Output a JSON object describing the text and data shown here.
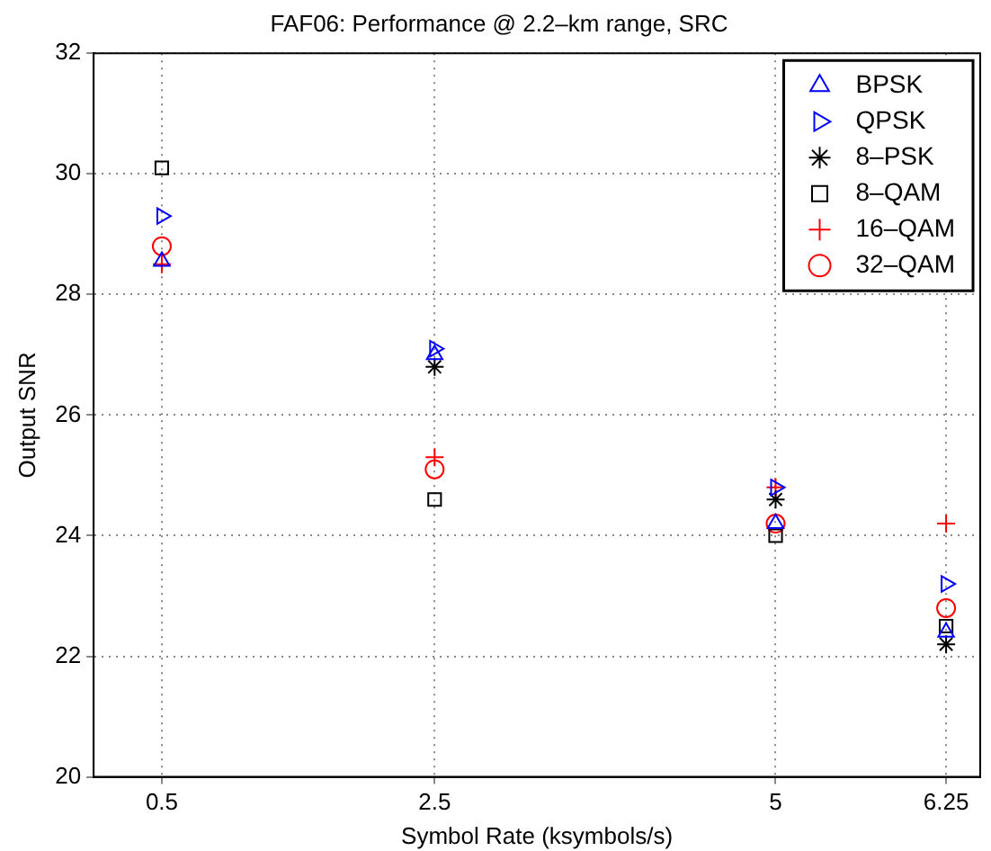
{
  "chart_data": {
    "type": "scatter",
    "title": "FAF06: Performance @ 2.2–km range, SRC",
    "xlabel": "Symbol Rate (ksymbols/s)",
    "ylabel": "Output SNR",
    "x": [
      0.5,
      2.5,
      5,
      6.25
    ],
    "xlim": [
      0,
      6.5
    ],
    "xticks": [
      0.5,
      2.5,
      5,
      6.25
    ],
    "ylim": [
      20,
      32
    ],
    "yticks": [
      20,
      22,
      24,
      26,
      28,
      30,
      32
    ],
    "grid": true,
    "legend": "top right",
    "series": [
      {
        "name": "BPSK",
        "color": "#0000ff",
        "marker": "triangle",
        "values": [
          28.55,
          27.0,
          24.2,
          22.4
        ]
      },
      {
        "name": "QPSK",
        "color": "#0000ff",
        "marker": "triangle-right",
        "values": [
          29.3,
          27.1,
          24.8,
          23.2
        ]
      },
      {
        "name": "8–PSK",
        "color": "#000000",
        "values": [
          null,
          26.8,
          24.6,
          22.2
        ]
      },
      {
        "name": "8–QAM",
        "color": "#000000",
        "marker": "square",
        "values": [
          30.1,
          24.6,
          24.0,
          22.5
        ]
      },
      {
        "name": "16–QAM",
        "color": "#ff0000",
        "marker": "cross",
        "values": [
          28.5,
          25.3,
          24.8,
          24.2
        ]
      },
      {
        "name": "32–QAM",
        "color": "#ff0000",
        "marker": "circle",
        "values": [
          28.8,
          25.1,
          24.2,
          22.8
        ]
      }
    ]
  }
}
